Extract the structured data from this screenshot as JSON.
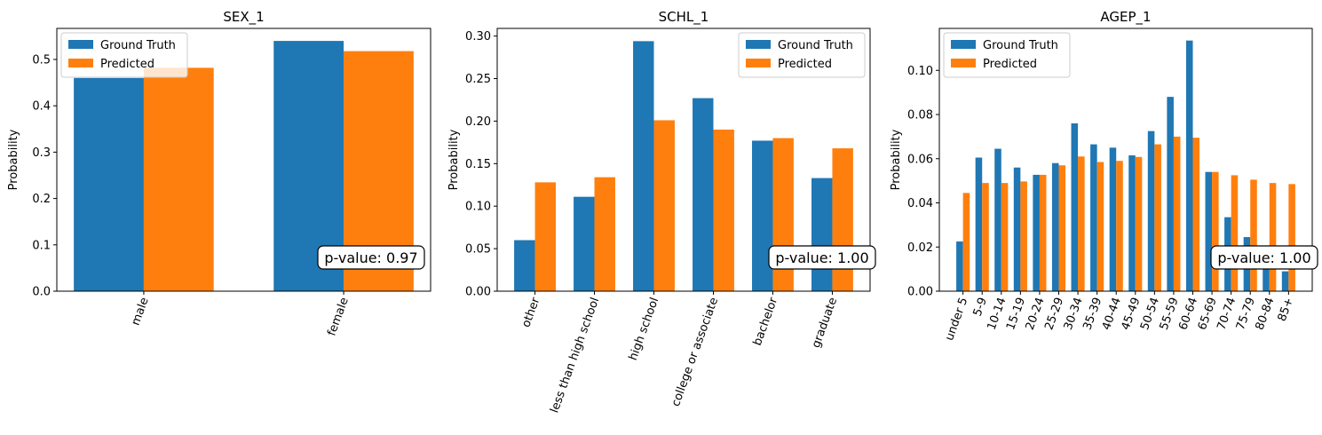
{
  "chart_data": [
    {
      "type": "bar",
      "title": "SEX_1",
      "xlabel": "",
      "ylabel": "Probability",
      "categories": [
        "male",
        "female"
      ],
      "series": [
        {
          "name": "Ground Truth",
          "values": [
            0.46,
            0.54
          ]
        },
        {
          "name": "Predicted",
          "values": [
            0.482,
            0.518
          ]
        }
      ],
      "ylim": [
        0,
        0.567
      ],
      "yticks": [
        0.0,
        0.1,
        0.2,
        0.3,
        0.4,
        0.5
      ],
      "ytick_decimals": 1,
      "legend": "top-left",
      "grid": false,
      "annotation": "p-value: 0.97"
    },
    {
      "type": "bar",
      "title": "SCHL_1",
      "xlabel": "",
      "ylabel": "Probability",
      "categories": [
        "other",
        "less than high school",
        "high school",
        "college or associate",
        "bachelor",
        "graduate"
      ],
      "series": [
        {
          "name": "Ground Truth",
          "values": [
            0.06,
            0.111,
            0.294,
            0.227,
            0.177,
            0.133
          ]
        },
        {
          "name": "Predicted",
          "values": [
            0.128,
            0.134,
            0.201,
            0.19,
            0.18,
            0.168
          ]
        }
      ],
      "ylim": [
        0,
        0.309
      ],
      "yticks": [
        0.0,
        0.05,
        0.1,
        0.15,
        0.2,
        0.25,
        0.3
      ],
      "ytick_decimals": 2,
      "legend": "top-right",
      "grid": false,
      "annotation": "p-value: 1.00"
    },
    {
      "type": "bar",
      "title": "AGEP_1",
      "xlabel": "",
      "ylabel": "Probability",
      "categories": [
        "under 5",
        "5-9",
        "10-14",
        "15-19",
        "20-24",
        "25-29",
        "30-34",
        "35-39",
        "40-44",
        "45-49",
        "50-54",
        "55-59",
        "60-64",
        "65-69",
        "70-74",
        "75-79",
        "80-84",
        "85+"
      ],
      "series": [
        {
          "name": "Ground Truth",
          "values": [
            0.0225,
            0.0605,
            0.0645,
            0.056,
            0.0527,
            0.058,
            0.076,
            0.0665,
            0.065,
            0.0615,
            0.0725,
            0.088,
            0.1135,
            0.054,
            0.0335,
            0.0245,
            0.012,
            0.009
          ]
        },
        {
          "name": "Predicted",
          "values": [
            0.0445,
            0.049,
            0.049,
            0.0497,
            0.0527,
            0.057,
            0.061,
            0.0585,
            0.059,
            0.0608,
            0.0665,
            0.07,
            0.0695,
            0.054,
            0.0525,
            0.0505,
            0.049,
            0.0485
          ]
        }
      ],
      "ylim": [
        0,
        0.119
      ],
      "yticks": [
        0.0,
        0.02,
        0.04,
        0.06,
        0.08,
        0.1
      ],
      "ytick_decimals": 2,
      "legend": "top-left",
      "grid": false,
      "annotation": "p-value: 1.00"
    }
  ],
  "colors": {
    "ground_truth": "#1f77b4",
    "predicted": "#ff7f0e"
  }
}
